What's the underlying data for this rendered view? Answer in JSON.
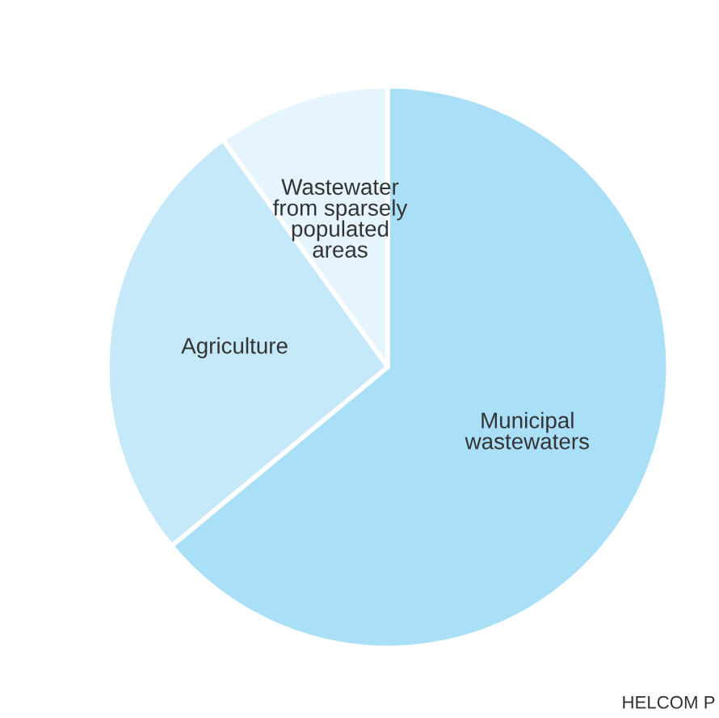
{
  "chart_data": {
    "type": "pie",
    "categories": [
      "Wastewater\nfrom sparsely\npopulated\nareas",
      "Agriculture",
      "Municipal\nwastewaters"
    ],
    "values": [
      10,
      26,
      64
    ],
    "colors": [
      "#e6f5fd",
      "#c6e9f9",
      "#aadff8"
    ],
    "annotations": [
      "HELCOM P"
    ]
  }
}
